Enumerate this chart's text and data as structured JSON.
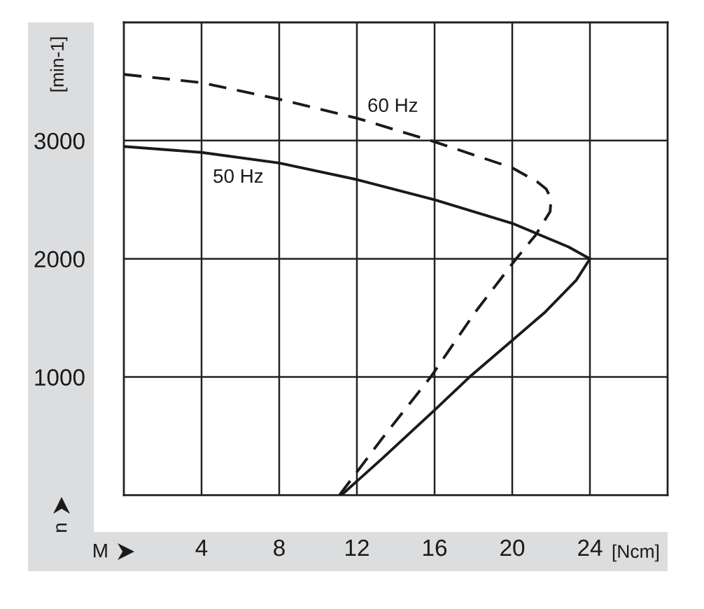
{
  "chart_data": {
    "type": "line",
    "xlabel": "M",
    "ylabel": "n",
    "annotations": [
      "[Ncm]",
      "[min-1]"
    ],
    "xlim": [
      0,
      28
    ],
    "ylim": [
      0,
      4000
    ],
    "xticks": [
      4,
      8,
      12,
      16,
      20,
      24
    ],
    "yticks": [
      1000,
      2000,
      3000
    ],
    "grid": true,
    "series": [
      {
        "name": "50 Hz",
        "color": "#1a1a1a",
        "line_style": "solid",
        "x": [
          0,
          4,
          8,
          12,
          16,
          20,
          22.9,
          24,
          23.3,
          21.7,
          20,
          17.8,
          16,
          13.3,
          11.2
        ],
        "values": [
          2950,
          2900,
          2810,
          2670,
          2500,
          2300,
          2100,
          2000,
          1820,
          1550,
          1310,
          1000,
          720,
          310,
          0
        ]
      },
      {
        "name": "60 Hz",
        "color": "#1a1a1a",
        "line_style": "dashed",
        "x": [
          0,
          4,
          8,
          12,
          16,
          20,
          21.3,
          21.75,
          22.0,
          21.95,
          21.2,
          20.2,
          18.1,
          15.8,
          13.3,
          11.1
        ],
        "values": [
          3560,
          3490,
          3350,
          3190,
          2990,
          2770,
          2650,
          2590,
          2510,
          2400,
          2200,
          2000,
          1550,
          1000,
          480,
          0
        ]
      }
    ]
  }
}
